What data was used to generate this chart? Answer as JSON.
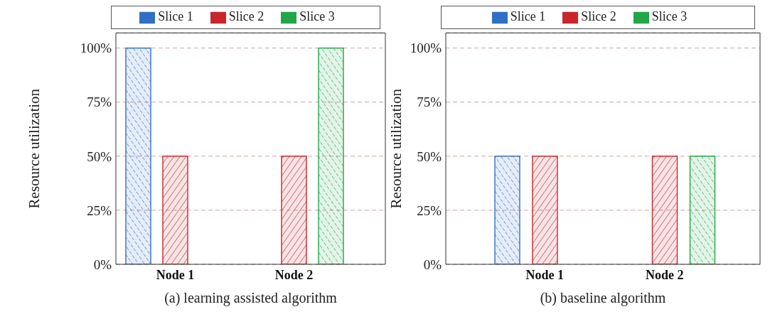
{
  "chart_data": [
    {
      "type": "bar",
      "title": "(a) learning assisted algorithm",
      "ylabel": "Resource utilization",
      "categories": [
        "Node 1",
        "Node 2"
      ],
      "ylim": [
        0,
        107
      ],
      "yticks": [
        {
          "value": 0,
          "label": "0%"
        },
        {
          "value": 25,
          "label": "25%"
        },
        {
          "value": 50,
          "label": "50%"
        },
        {
          "value": 75,
          "label": "75%"
        },
        {
          "value": 100,
          "label": "100%"
        }
      ],
      "grid": "y",
      "legend": "top",
      "series": [
        {
          "name": "Slice 1",
          "color": "#2f6fc4",
          "values": [
            100,
            0
          ]
        },
        {
          "name": "Slice 2",
          "color": "#c8262a",
          "values": [
            50,
            50
          ]
        },
        {
          "name": "Slice 3",
          "color": "#22a64a",
          "values": [
            0,
            100
          ]
        }
      ]
    },
    {
      "type": "bar",
      "title": "(b) baseline algorithm",
      "ylabel": "Resource utilization",
      "categories": [
        "Node 1",
        "Node 2"
      ],
      "ylim": [
        0,
        107
      ],
      "yticks": [
        {
          "value": 0,
          "label": "0%"
        },
        {
          "value": 25,
          "label": "25%"
        },
        {
          "value": 50,
          "label": "50%"
        },
        {
          "value": 75,
          "label": "75%"
        },
        {
          "value": 100,
          "label": "100%"
        }
      ],
      "grid": "y",
      "legend": "top",
      "series": [
        {
          "name": "Slice 1",
          "color": "#2f6fc4",
          "values": [
            50,
            0
          ]
        },
        {
          "name": "Slice 2",
          "color": "#c8262a",
          "values": [
            50,
            50
          ]
        },
        {
          "name": "Slice 3",
          "color": "#22a64a",
          "values": [
            0,
            50
          ]
        }
      ]
    }
  ]
}
